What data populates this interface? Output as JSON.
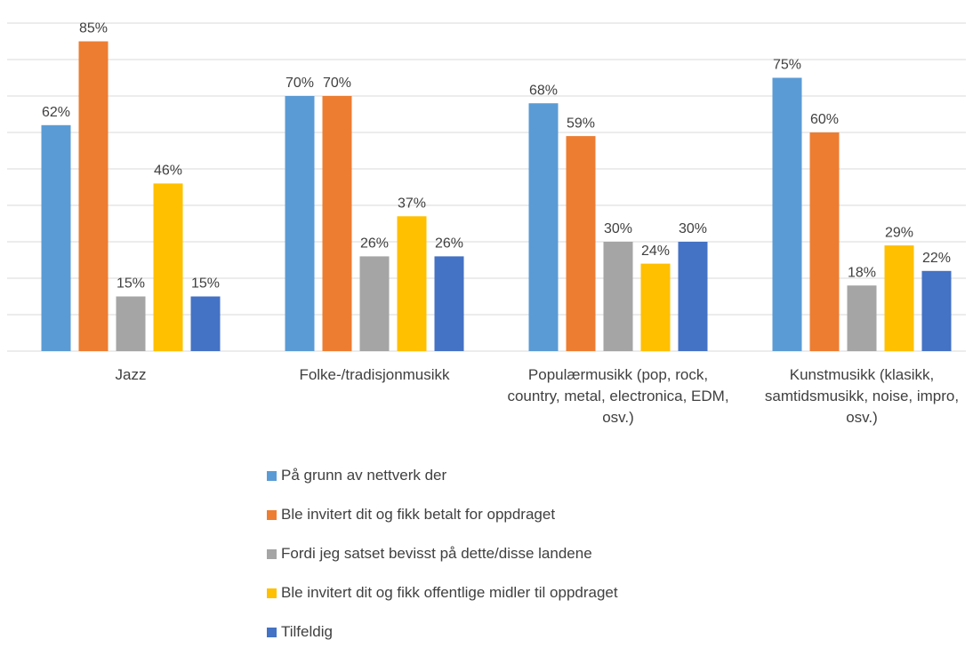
{
  "chart_data": {
    "type": "bar",
    "categories": [
      "Jazz",
      "Folke-/tradisjonmusikk",
      "Populærmusikk (pop, rock, country, metal, electronica, EDM, osv.)",
      "Kunstmusikk (klasikk, samtidsmusikk, noise, impro, osv.)"
    ],
    "series": [
      {
        "name": "På grunn av nettverk der",
        "color": "#5b9bd5",
        "values": [
          62,
          70,
          68,
          75
        ],
        "value_labels": [
          "62%",
          "70%",
          "68%",
          "75%"
        ]
      },
      {
        "name": "Ble invitert dit og fikk betalt for oppdraget",
        "color": "#ed7d31",
        "values": [
          85,
          70,
          59,
          60
        ],
        "value_labels": [
          "85%",
          "70%",
          "59%",
          "60%"
        ]
      },
      {
        "name": "Fordi jeg satset bevisst på dette/disse landene",
        "color": "#a5a5a5",
        "values": [
          15,
          26,
          30,
          18
        ],
        "value_labels": [
          "15%",
          "26%",
          "30%",
          "18%"
        ]
      },
      {
        "name": "Ble invitert dit og fikk offentlige midler til oppdraget",
        "color": "#ffc000",
        "values": [
          46,
          37,
          24,
          29
        ],
        "value_labels": [
          "46%",
          "37%",
          "24%",
          "29%"
        ]
      },
      {
        "name": "Tilfeldig",
        "color": "#4472c4",
        "values": [
          15,
          26,
          30,
          22
        ],
        "value_labels": [
          "15%",
          "26%",
          "30%",
          "22%"
        ]
      }
    ],
    "ylim": [
      0,
      90
    ],
    "yticks": [
      0,
      10,
      20,
      30,
      40,
      50,
      60,
      70,
      80,
      90
    ],
    "grid": true,
    "legend": "bottom"
  }
}
